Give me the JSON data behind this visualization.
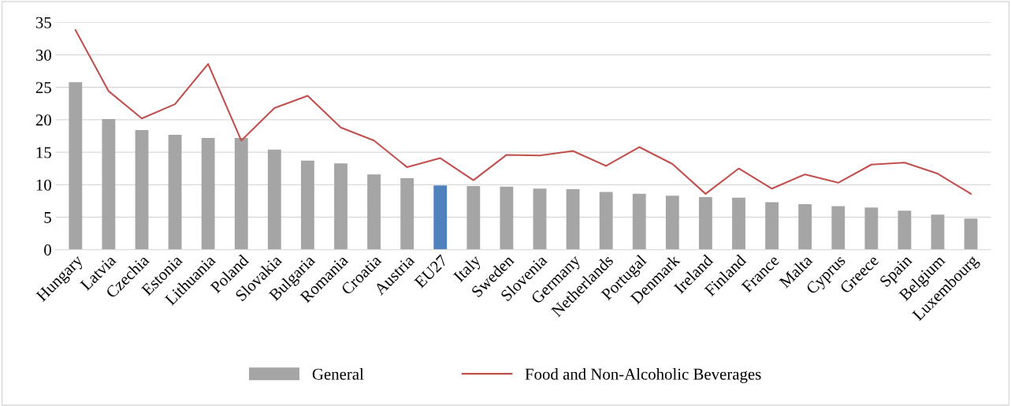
{
  "chart_data": {
    "type": "bar",
    "categories": [
      "Hungary",
      "Latvia",
      "Czechia",
      "Estonia",
      "Lithuania",
      "Poland",
      "Slovakia",
      "Bulgaria",
      "Romania",
      "Croatia",
      "Austria",
      "EU27",
      "Italy",
      "Sweden",
      "Slovenia",
      "Germany",
      "Netherlands",
      "Portugal",
      "Denmark",
      "Ireland",
      "Finland",
      "France",
      "Malta",
      "Cyprus",
      "Greece",
      "Spain",
      "Belgium",
      "Luxembourg"
    ],
    "series": [
      {
        "name": "General",
        "color": "#a5a5a5",
        "colors": [
          "#a5a5a5",
          "#a5a5a5",
          "#a5a5a5",
          "#a5a5a5",
          "#a5a5a5",
          "#a5a5a5",
          "#a5a5a5",
          "#a5a5a5",
          "#a5a5a5",
          "#a5a5a5",
          "#a5a5a5",
          "#4f81bd",
          "#a5a5a5",
          "#a5a5a5",
          "#a5a5a5",
          "#a5a5a5",
          "#a5a5a5",
          "#a5a5a5",
          "#a5a5a5",
          "#a5a5a5",
          "#a5a5a5",
          "#a5a5a5",
          "#a5a5a5",
          "#a5a5a5",
          "#a5a5a5",
          "#a5a5a5",
          "#a5a5a5",
          "#a5a5a5"
        ],
        "values": [
          25.8,
          20.1,
          18.4,
          17.7,
          17.2,
          17.2,
          15.4,
          13.7,
          13.3,
          11.6,
          11.0,
          9.9,
          9.8,
          9.7,
          9.4,
          9.3,
          8.9,
          8.6,
          8.3,
          8.1,
          8.0,
          7.3,
          7.0,
          6.7,
          6.5,
          6.0,
          5.4,
          4.8
        ]
      },
      {
        "name": "Food and Non-Alcoholic Beverages",
        "type": "line",
        "color": "#c0504d",
        "values": [
          33.8,
          24.4,
          20.2,
          22.4,
          28.6,
          16.8,
          21.8,
          23.7,
          18.8,
          16.8,
          12.7,
          14.1,
          10.7,
          14.6,
          14.5,
          15.2,
          12.9,
          15.8,
          13.2,
          8.6,
          12.5,
          9.4,
          11.6,
          10.3,
          13.1,
          13.4,
          11.7,
          8.6
        ]
      }
    ],
    "ylim": [
      0,
      35
    ],
    "yticks": [
      0,
      5,
      10,
      15,
      20,
      25,
      30,
      35
    ],
    "grid": "y",
    "legend": "bottom",
    "marker": "none",
    "line_style": "solid"
  }
}
